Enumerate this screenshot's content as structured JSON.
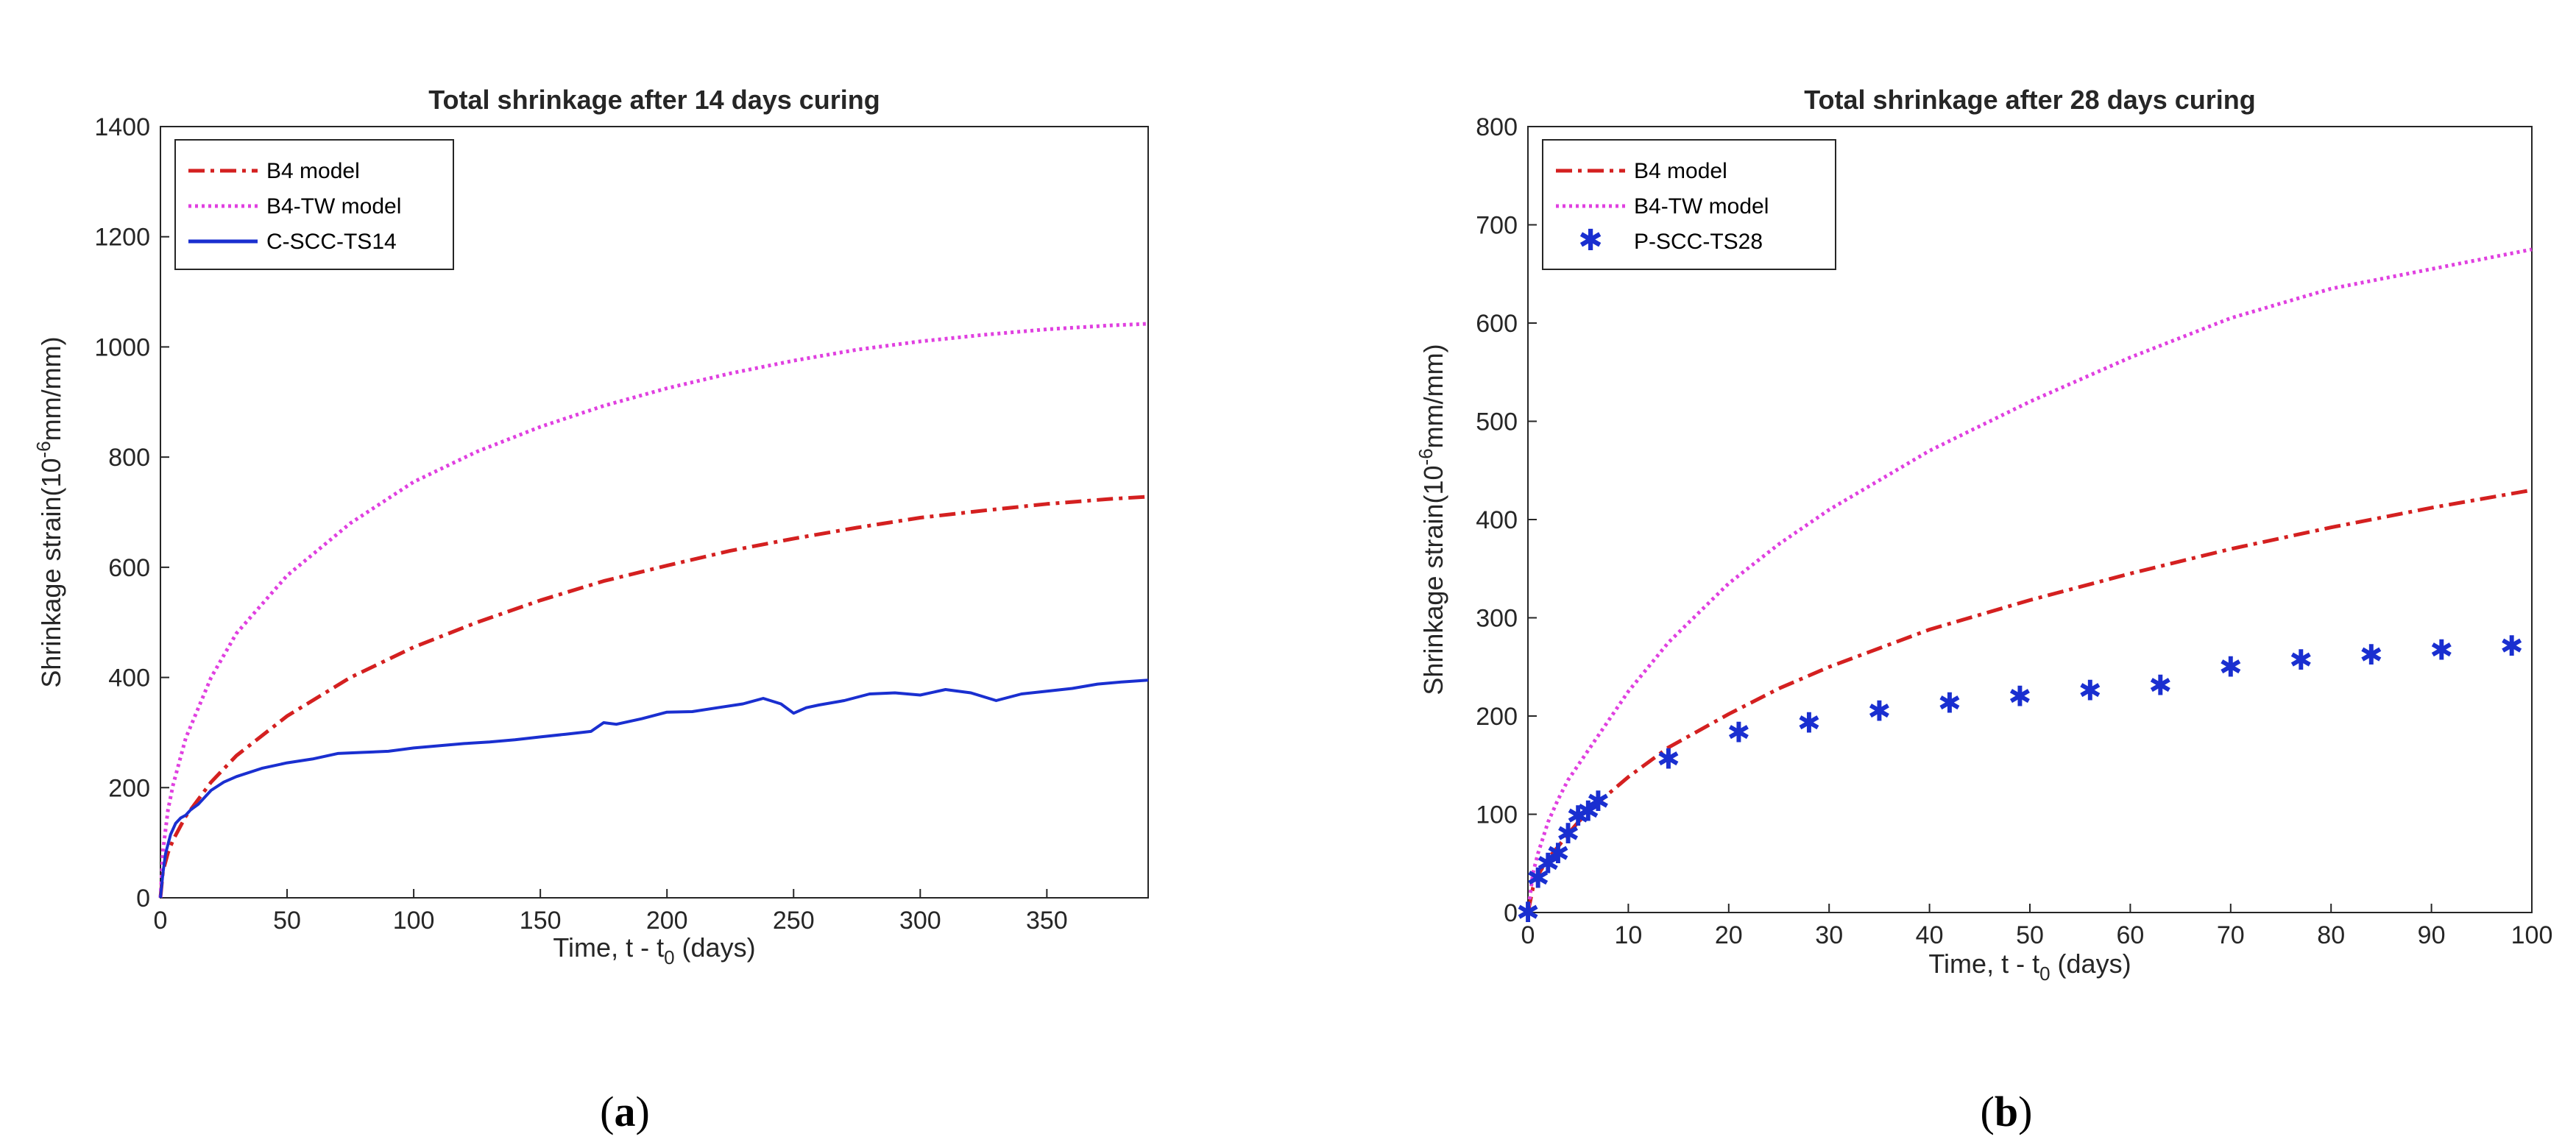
{
  "colors": {
    "b4": "#d42020",
    "b4tw": "#e040e0",
    "measured": "#1a2fd0",
    "axis": "#262626"
  },
  "chart_data": [
    {
      "id": "a",
      "type": "line",
      "title": "Total shrinkage after 14 days curing",
      "xlabel_main": "Time, t - t",
      "xlabel_sub": "0",
      "xlabel_tail": " (days)",
      "ylabel_main": "Shrinkage strain(10",
      "ylabel_sup": "-6",
      "ylabel_tail": "mm/mm)",
      "xlim": [
        0,
        390
      ],
      "ylim": [
        0,
        1400
      ],
      "xticks": [
        0,
        50,
        100,
        150,
        200,
        250,
        300,
        350
      ],
      "yticks": [
        0,
        200,
        400,
        600,
        800,
        1000,
        1200,
        1400
      ],
      "legend_position": "top-left",
      "caption_open": "(",
      "caption_letter": "a",
      "caption_close": ")",
      "series": [
        {
          "name": "B4 model",
          "style": "dashdot",
          "color": "#d42020",
          "x": [
            0,
            1,
            3,
            5,
            10,
            20,
            30,
            50,
            75,
            100,
            125,
            150,
            175,
            200,
            225,
            250,
            275,
            300,
            325,
            350,
            375,
            390
          ],
          "y": [
            0,
            48,
            82,
            105,
            148,
            210,
            258,
            330,
            400,
            455,
            500,
            540,
            575,
            603,
            630,
            652,
            672,
            690,
            703,
            715,
            724,
            728
          ]
        },
        {
          "name": "B4-TW model",
          "style": "dotted",
          "color": "#e040e0",
          "x": [
            0,
            1,
            3,
            5,
            10,
            20,
            30,
            50,
            75,
            100,
            125,
            150,
            175,
            200,
            225,
            250,
            275,
            300,
            325,
            350,
            375,
            390
          ],
          "y": [
            0,
            85,
            160,
            205,
            290,
            400,
            480,
            585,
            680,
            755,
            810,
            855,
            893,
            925,
            952,
            975,
            995,
            1010,
            1022,
            1032,
            1039,
            1042
          ]
        },
        {
          "name": "C-SCC-TS14",
          "style": "solid",
          "color": "#1a2fd0",
          "x": [
            0,
            1,
            2,
            4,
            6,
            8,
            10,
            12,
            15,
            20,
            25,
            30,
            40,
            50,
            60,
            70,
            80,
            90,
            100,
            110,
            120,
            130,
            140,
            150,
            160,
            170,
            175,
            180,
            190,
            200,
            210,
            220,
            230,
            238,
            245,
            250,
            255,
            260,
            270,
            280,
            290,
            300,
            310,
            320,
            330,
            340,
            350,
            360,
            370,
            380,
            390
          ],
          "y": [
            0,
            45,
            80,
            115,
            135,
            145,
            150,
            160,
            170,
            195,
            210,
            220,
            235,
            245,
            252,
            262,
            264,
            266,
            272,
            276,
            280,
            283,
            287,
            292,
            297,
            302,
            318,
            315,
            325,
            337,
            338,
            345,
            352,
            362,
            352,
            335,
            345,
            350,
            358,
            370,
            372,
            368,
            378,
            372,
            358,
            370,
            375,
            380,
            388,
            392,
            395
          ]
        }
      ]
    },
    {
      "id": "b",
      "type": "line",
      "title": "Total shrinkage after 28 days curing",
      "xlabel_main": "Time, t - t",
      "xlabel_sub": "0",
      "xlabel_tail": " (days)",
      "ylabel_main": "Shrinkage strain(10",
      "ylabel_sup": "-6",
      "ylabel_tail": "mm/mm)",
      "xlim": [
        0,
        100
      ],
      "ylim": [
        0,
        800
      ],
      "xticks": [
        0,
        10,
        20,
        30,
        40,
        50,
        60,
        70,
        80,
        90,
        100
      ],
      "yticks": [
        0,
        100,
        200,
        300,
        400,
        500,
        600,
        700,
        800
      ],
      "legend_position": "top-left",
      "caption_open": "(",
      "caption_letter": "b",
      "caption_close": ")",
      "series": [
        {
          "name": "B4 model",
          "style": "dashdot",
          "color": "#d42020",
          "x": [
            0,
            0.5,
            1,
            2,
            3,
            4,
            5,
            7,
            10,
            14,
            20,
            25,
            30,
            40,
            50,
            60,
            70,
            80,
            90,
            100
          ],
          "y": [
            0,
            25,
            38,
            55,
            67,
            80,
            92,
            112,
            138,
            168,
            202,
            228,
            250,
            288,
            318,
            345,
            370,
            392,
            412,
            430
          ]
        },
        {
          "name": "B4-TW model",
          "style": "dotted",
          "color": "#e040e0",
          "x": [
            0,
            0.5,
            1,
            2,
            3,
            4,
            5,
            7,
            10,
            14,
            20,
            25,
            30,
            40,
            50,
            60,
            70,
            80,
            90,
            100
          ],
          "y": [
            0,
            40,
            60,
            92,
            115,
            135,
            150,
            180,
            225,
            275,
            335,
            375,
            410,
            470,
            520,
            565,
            605,
            635,
            655,
            675
          ]
        },
        {
          "name": "P-SCC-TS28",
          "style": "marker-star",
          "color": "#1a2fd0",
          "x": [
            0,
            1,
            2,
            3,
            4,
            5,
            6,
            7,
            14,
            21,
            28,
            35,
            42,
            49,
            56,
            63,
            70,
            77,
            84,
            91,
            98
          ],
          "y": [
            0,
            35,
            50,
            60,
            80,
            98,
            103,
            113,
            156,
            183,
            193,
            205,
            213,
            220,
            226,
            231,
            250,
            257,
            262,
            267,
            271
          ]
        }
      ]
    }
  ]
}
